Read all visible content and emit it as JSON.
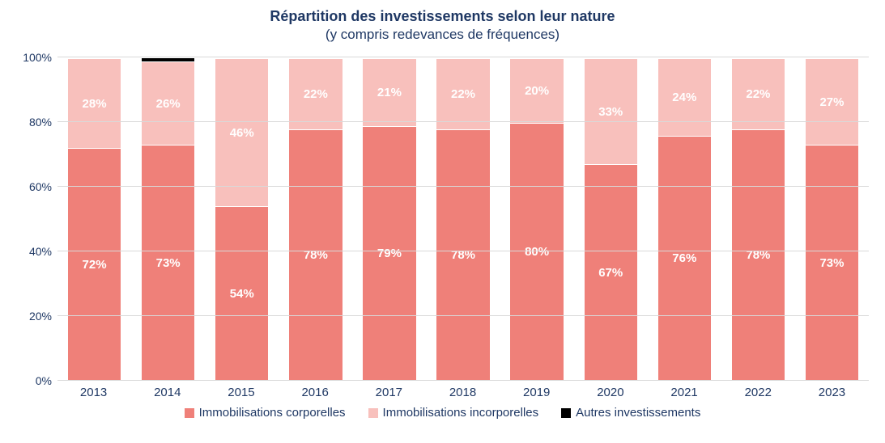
{
  "chart": {
    "type": "stacked-bar-100",
    "title": "Répartition des investissements selon leur nature",
    "subtitle": "(y compris redevances de fréquences)",
    "title_color": "#1f3864",
    "subtitle_color": "#1f3864",
    "title_fontsize": 18,
    "subtitle_fontsize": 17,
    "background_color": "#ffffff",
    "grid_color": "#d9d9d9",
    "axis_text_color": "#1f3864",
    "legend_text_color": "#1f3864",
    "ylim": [
      0,
      100
    ],
    "ytick_step": 20,
    "yticks": [
      "0%",
      "20%",
      "40%",
      "60%",
      "80%",
      "100%"
    ],
    "categories": [
      "2013",
      "2014",
      "2015",
      "2016",
      "2017",
      "2018",
      "2019",
      "2020",
      "2021",
      "2022",
      "2023"
    ],
    "series": [
      {
        "name": "Immobilisations corporelles",
        "color": "#ef8079",
        "values": [
          72,
          73,
          54,
          78,
          79,
          78,
          80,
          67,
          76,
          78,
          73
        ],
        "labels": [
          "72%",
          "73%",
          "54%",
          "78%",
          "79%",
          "78%",
          "80%",
          "67%",
          "76%",
          "78%",
          "73%"
        ],
        "show_label": [
          true,
          true,
          true,
          true,
          true,
          true,
          true,
          true,
          true,
          true,
          true
        ]
      },
      {
        "name": "Immobilisations incorporelles",
        "color": "#f8c0bc",
        "values": [
          28,
          26,
          46,
          22,
          21,
          22,
          20,
          33,
          24,
          22,
          27
        ],
        "labels": [
          "28%",
          "26%",
          "46%",
          "22%",
          "21%",
          "22%",
          "20%",
          "33%",
          "24%",
          "22%",
          "27%"
        ],
        "show_label": [
          true,
          true,
          true,
          true,
          true,
          true,
          true,
          true,
          true,
          true,
          true
        ]
      },
      {
        "name": "Autres investissements",
        "color": "#000000",
        "values": [
          0,
          1,
          0,
          0,
          0,
          0,
          0,
          0,
          0,
          0,
          0
        ],
        "labels": [
          "",
          "",
          "",
          "",
          "",
          "",
          "",
          "",
          "",
          "",
          ""
        ],
        "show_label": [
          false,
          false,
          false,
          false,
          false,
          false,
          false,
          false,
          false,
          false,
          false
        ]
      }
    ],
    "bar_width_ratio": 0.74,
    "data_label_color": "#ffffff",
    "data_label_fontsize": 15
  }
}
